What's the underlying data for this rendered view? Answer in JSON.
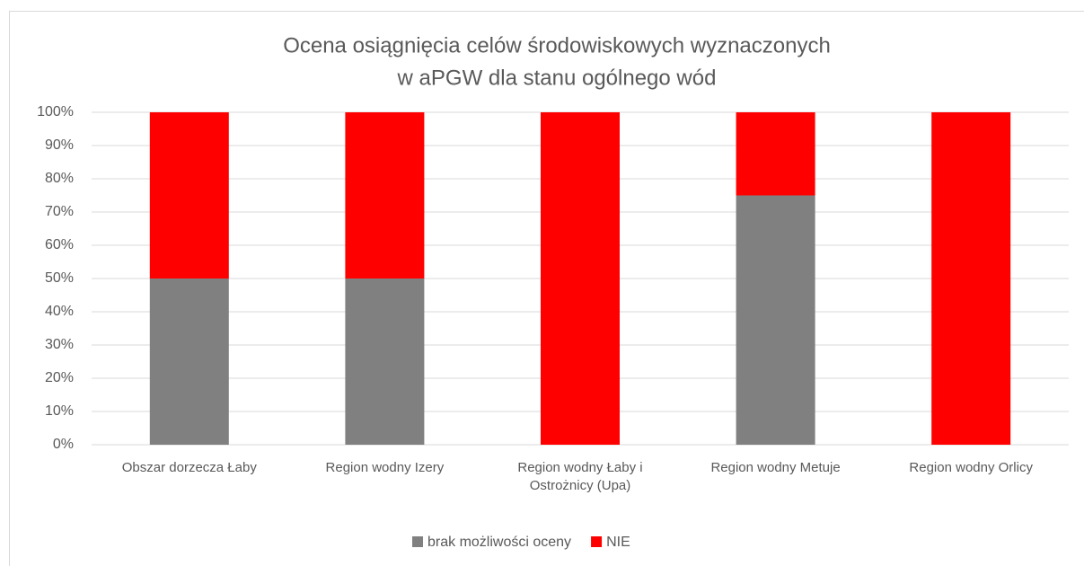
{
  "chart_data": {
    "type": "stacked_bar",
    "title": [
      "Ocena osiągnięcia celów środowiskowych wyznaczonych",
      "w aPGW dla stanu ogólnego wód"
    ],
    "categories": [
      "Obszar dorzecza Łaby",
      "Region wodny Izery",
      "Region wodny Łaby i Ostrożnicy (Upa)",
      "Region wodny Metuje",
      "Region wodny Orlicy"
    ],
    "series": [
      {
        "name": "brak możliwości oceny",
        "color": "#808080",
        "values": [
          50,
          50,
          0,
          75,
          0
        ]
      },
      {
        "name": "NIE",
        "color": "#ff0000",
        "values": [
          50,
          50,
          100,
          25,
          100
        ]
      }
    ],
    "ylim": [
      0,
      100
    ],
    "yticks": [
      {
        "value": 0,
        "label": "0%"
      },
      {
        "value": 10,
        "label": "10%"
      },
      {
        "value": 20,
        "label": "20%"
      },
      {
        "value": 30,
        "label": "30%"
      },
      {
        "value": 40,
        "label": "40%"
      },
      {
        "value": 50,
        "label": "50%"
      },
      {
        "value": 60,
        "label": "60%"
      },
      {
        "value": 70,
        "label": "70%"
      },
      {
        "value": 80,
        "label": "80%"
      },
      {
        "value": 90,
        "label": "90%"
      },
      {
        "value": 100,
        "label": "100%"
      }
    ],
    "grid": true,
    "legend": "bottom"
  }
}
